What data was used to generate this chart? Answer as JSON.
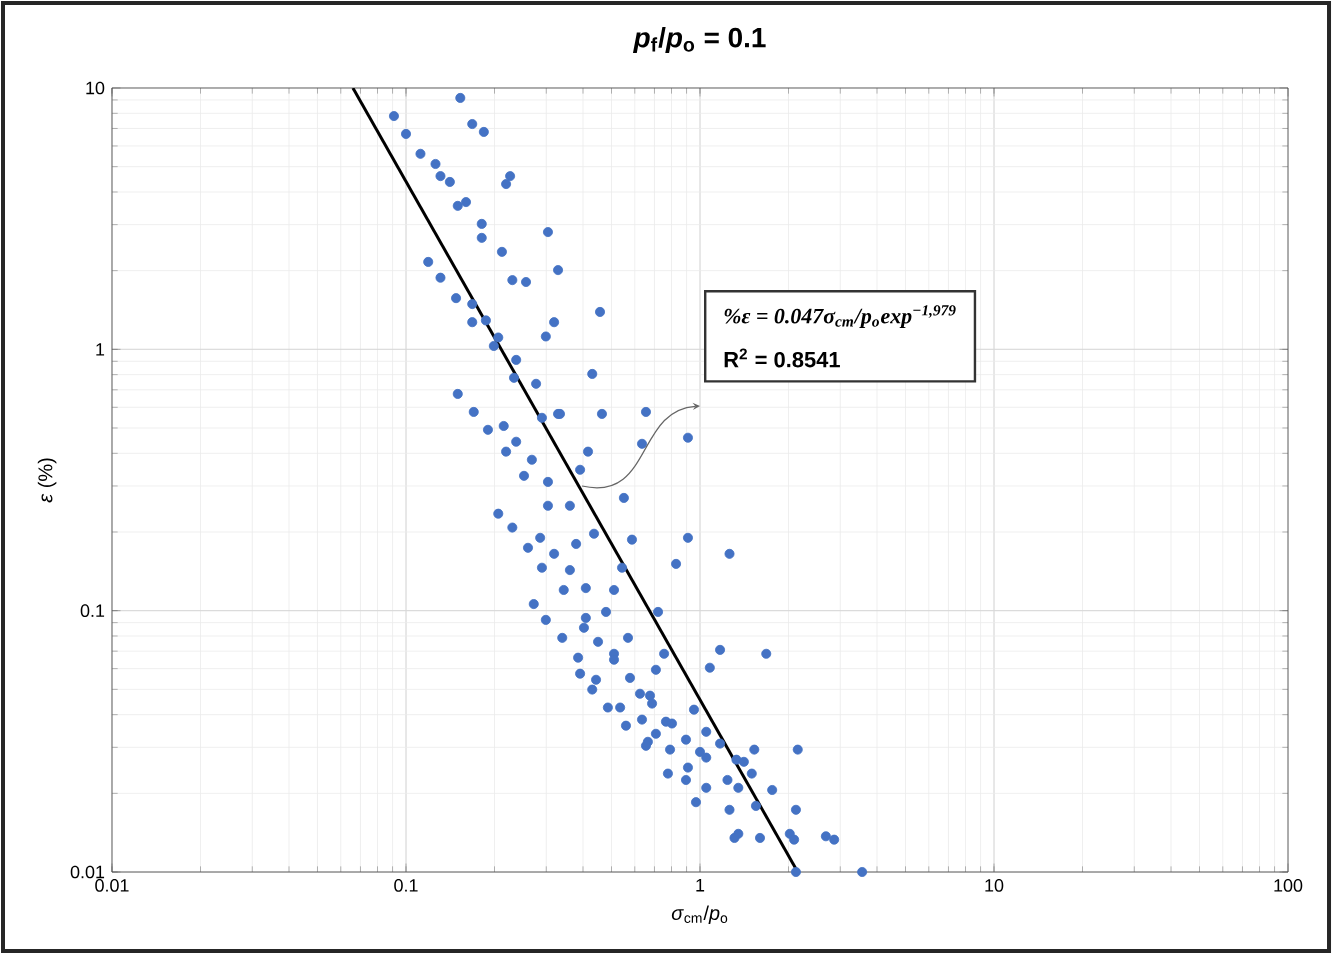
{
  "chart_data": {
    "type": "scatter",
    "title": "*p*$_{f}$/*p*$_{o}$ = 0.1",
    "xlabel": "*σ*$_{cm}$/*p*$_{o}$",
    "ylabel": "*ε* (%)",
    "annotations": [
      "%ε = 0.047σ$_{cm}$/p$_{o}$exp$^{−1,979}$",
      "R$^{2}$ = 0.8541"
    ],
    "log": "xy",
    "grid": true,
    "marker": "circle",
    "xlim": [
      0.01,
      100
    ],
    "ylim": [
      0.01,
      10
    ],
    "xticks": [
      0.01,
      0.1,
      1,
      10,
      100
    ],
    "yticks": [
      0.01,
      0.1,
      1,
      10
    ],
    "series": [
      {
        "type": "scatter",
        "color": "#4472c4",
        "x": [
          0.153,
          0.091,
          0.168,
          0.184,
          0.1,
          0.112,
          0.126,
          0.131,
          0.141,
          0.226,
          0.219,
          0.15,
          0.16,
          0.181,
          0.181,
          0.304,
          0.212,
          0.329,
          0.119,
          0.131,
          0.23,
          0.256,
          0.148,
          0.168,
          0.187,
          0.168,
          0.319,
          0.299,
          0.206,
          0.199,
          0.237,
          0.233,
          0.277,
          0.15,
          0.17,
          0.29,
          0.329,
          0.215,
          0.19,
          0.237,
          0.219,
          0.268,
          0.457,
          0.43,
          0.334,
          0.464,
          0.655,
          0.416,
          0.635,
          0.91,
          0.252,
          0.391,
          0.304,
          0.206,
          0.304,
          0.361,
          0.23,
          0.436,
          0.286,
          0.26,
          0.379,
          0.319,
          0.29,
          0.361,
          0.344,
          0.409,
          0.272,
          0.409,
          0.299,
          0.403,
          0.34,
          0.45,
          0.385,
          0.391,
          0.443,
          0.43,
          0.551,
          0.587,
          0.91,
          0.829,
          1.26,
          0.543,
          0.51,
          0.479,
          0.72,
          0.569,
          0.51,
          0.51,
          0.755,
          1.17,
          1.68,
          1.08,
          0.708,
          0.578,
          0.625,
          0.676,
          0.687,
          0.486,
          0.535,
          0.954,
          0.635,
          0.766,
          0.803,
          0.708,
          0.56,
          1.05,
          0.896,
          0.665,
          0.655,
          1.17,
          1.0,
          1.05,
          0.791,
          1.53,
          2.15,
          1.33,
          1.41,
          1.5,
          0.778,
          0.91,
          1.24,
          0.896,
          1.35,
          1.05,
          1.76,
          0.969,
          1.55,
          1.26,
          2.12,
          1.35,
          1.31,
          1.6,
          2.02,
          2.09,
          2.68,
          2.86,
          2.12,
          3.56
        ],
        "values": [
          9.16,
          7.81,
          7.28,
          6.79,
          6.67,
          5.6,
          5.12,
          4.6,
          4.37,
          4.6,
          4.29,
          3.54,
          3.66,
          3.02,
          2.67,
          2.81,
          2.36,
          2.01,
          2.16,
          1.88,
          1.84,
          1.81,
          1.57,
          1.49,
          1.29,
          1.27,
          1.27,
          1.12,
          1.11,
          1.03,
          0.911,
          0.778,
          0.738,
          0.675,
          0.576,
          0.547,
          0.566,
          0.509,
          0.492,
          0.443,
          0.406,
          0.378,
          1.39,
          0.805,
          0.566,
          0.566,
          0.576,
          0.406,
          0.435,
          0.459,
          0.328,
          0.346,
          0.311,
          0.235,
          0.252,
          0.252,
          0.208,
          0.197,
          0.19,
          0.174,
          0.18,
          0.165,
          0.146,
          0.143,
          0.12,
          0.122,
          0.106,
          0.0938,
          0.0922,
          0.086,
          0.0787,
          0.076,
          0.0661,
          0.0574,
          0.0544,
          0.0499,
          0.27,
          0.187,
          0.19,
          0.151,
          0.165,
          0.146,
          0.12,
          0.0989,
          0.0989,
          0.0787,
          0.0684,
          0.0649,
          0.0684,
          0.0708,
          0.0684,
          0.0605,
          0.0594,
          0.0553,
          0.0481,
          0.0473,
          0.0441,
          0.0426,
          0.0426,
          0.0418,
          0.0383,
          0.0376,
          0.037,
          0.0338,
          0.0363,
          0.0344,
          0.0321,
          0.0315,
          0.0304,
          0.031,
          0.0288,
          0.0274,
          0.0294,
          0.0294,
          0.0294,
          0.0269,
          0.0264,
          0.0238,
          0.0238,
          0.0251,
          0.0225,
          0.0225,
          0.021,
          0.021,
          0.0206,
          0.0185,
          0.0179,
          0.0173,
          0.0173,
          0.014,
          0.0135,
          0.0135,
          0.014,
          0.0133,
          0.0137,
          0.0133,
          0.01,
          0.01
        ]
      },
      {
        "type": "line",
        "color": "#000000",
        "marker": "none",
        "x": [
          0.066,
          2.15
        ],
        "values": [
          10,
          0.01
        ]
      }
    ]
  }
}
